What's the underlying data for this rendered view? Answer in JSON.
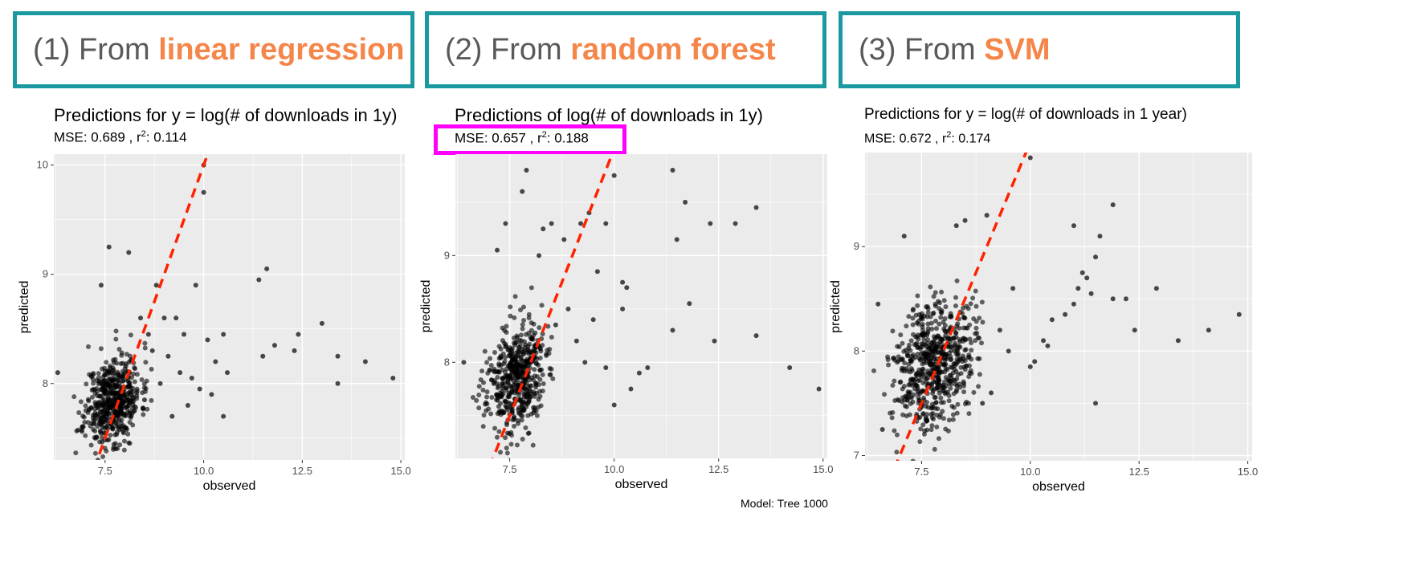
{
  "headers": [
    {
      "prefix": "(1) From ",
      "method": "linear regression"
    },
    {
      "prefix": "(2) From ",
      "method": "random forest"
    },
    {
      "prefix": "(3) From ",
      "method": "SVM"
    }
  ],
  "panels": [
    {
      "title": "Predictions for y = log(# of downloads in 1y)",
      "mse_label": "MSE:  0.689 , r",
      "r2_label": ":  0.114"
    },
    {
      "title": "Predictions of log(# of downloads in 1y)",
      "mse_label": "MSE:  0.657 , r",
      "r2_label": ":  0.188"
    },
    {
      "title": "Predictions for y = log(# of downloads in 1 year)",
      "mse_label": "MSE:  0.672 , r",
      "r2_label": ":  0.174"
    }
  ],
  "footer_caption": "Model: Tree 1000",
  "colors": {
    "header_border": "#1a9aa0",
    "method_text": "#f4864a",
    "highlight_box": "#ff00ff",
    "ref_line": "#ff2200",
    "panel_bg": "#ebebeb",
    "points": "#000000"
  },
  "chart_data": [
    {
      "type": "scatter",
      "title": "Predictions for y = log(# of downloads in 1y)",
      "subtitle": "MSE:  0.689 , r²:  0.114",
      "xlabel": "observed",
      "ylabel": "predicted",
      "xlim": [
        6.2,
        15.1
      ],
      "ylim": [
        7.3,
        10.1
      ],
      "xticks": [
        "7.5",
        "10.0",
        "12.5",
        "15.0"
      ],
      "yticks": [
        "8",
        "9",
        "10"
      ],
      "reference_line": {
        "slope": 1,
        "intercept": 0,
        "style": "dashed red"
      },
      "cluster": {
        "x_center": 7.7,
        "y_center": 7.85,
        "n": 520,
        "x_sd": 0.35,
        "y_sd": 0.2
      },
      "points": [
        [
          6.3,
          8.1
        ],
        [
          7.4,
          8.9
        ],
        [
          7.6,
          9.25
        ],
        [
          8.1,
          9.2
        ],
        [
          8.8,
          8.9
        ],
        [
          9.0,
          8.6
        ],
        [
          9.3,
          8.6
        ],
        [
          9.8,
          8.9
        ],
        [
          10.0,
          10.0
        ],
        [
          10.0,
          9.75
        ],
        [
          10.1,
          8.4
        ],
        [
          10.3,
          8.2
        ],
        [
          10.5,
          8.45
        ],
        [
          10.6,
          8.1
        ],
        [
          9.9,
          7.95
        ],
        [
          10.2,
          7.9
        ],
        [
          10.5,
          7.7
        ],
        [
          11.4,
          8.95
        ],
        [
          11.6,
          9.05
        ],
        [
          11.5,
          8.25
        ],
        [
          11.8,
          8.35
        ],
        [
          12.3,
          8.3
        ],
        [
          12.4,
          8.45
        ],
        [
          13.0,
          8.55
        ],
        [
          13.4,
          8.25
        ],
        [
          13.4,
          8.0
        ],
        [
          14.1,
          8.2
        ],
        [
          14.8,
          8.05
        ],
        [
          8.5,
          7.85
        ],
        [
          8.7,
          8.3
        ],
        [
          8.9,
          8.0
        ],
        [
          9.1,
          8.25
        ],
        [
          9.4,
          8.1
        ],
        [
          9.6,
          7.8
        ],
        [
          9.2,
          7.7
        ],
        [
          8.4,
          8.6
        ],
        [
          8.6,
          8.45
        ],
        [
          9.5,
          8.45
        ],
        [
          9.7,
          8.05
        ]
      ]
    },
    {
      "type": "scatter",
      "title": "Predictions of log(# of downloads in 1y)",
      "subtitle": "MSE:  0.657 , r²:  0.188",
      "xlabel": "observed",
      "ylabel": "predicted",
      "xlim": [
        6.2,
        15.1
      ],
      "ylim": [
        7.1,
        9.95
      ],
      "xticks": [
        "7.5",
        "10.0",
        "12.5",
        "15.0"
      ],
      "yticks": [
        "8",
        "9"
      ],
      "reference_line": {
        "slope": 1,
        "intercept": 0,
        "style": "dashed red"
      },
      "cluster": {
        "x_center": 7.65,
        "y_center": 7.85,
        "n": 520,
        "x_sd": 0.35,
        "y_sd": 0.25
      },
      "points": [
        [
          6.4,
          8.0
        ],
        [
          7.2,
          9.05
        ],
        [
          7.4,
          9.3
        ],
        [
          7.9,
          9.8
        ],
        [
          7.8,
          9.6
        ],
        [
          8.3,
          9.25
        ],
        [
          8.5,
          9.3
        ],
        [
          8.2,
          9.0
        ],
        [
          8.8,
          9.15
        ],
        [
          9.2,
          9.3
        ],
        [
          9.4,
          9.4
        ],
        [
          9.8,
          9.3
        ],
        [
          10.0,
          9.75
        ],
        [
          11.4,
          9.8
        ],
        [
          11.7,
          9.5
        ],
        [
          11.5,
          9.15
        ],
        [
          12.3,
          9.3
        ],
        [
          12.9,
          9.3
        ],
        [
          13.4,
          9.45
        ],
        [
          10.2,
          8.75
        ],
        [
          10.3,
          8.7
        ],
        [
          9.6,
          8.85
        ],
        [
          10.2,
          8.5
        ],
        [
          11.8,
          8.55
        ],
        [
          11.4,
          8.3
        ],
        [
          12.4,
          8.2
        ],
        [
          13.4,
          8.25
        ],
        [
          10.8,
          7.95
        ],
        [
          10.6,
          7.9
        ],
        [
          10.4,
          7.75
        ],
        [
          10.0,
          7.6
        ],
        [
          9.1,
          8.2
        ],
        [
          9.3,
          8.0
        ],
        [
          9.8,
          7.95
        ],
        [
          14.2,
          7.95
        ],
        [
          14.9,
          7.75
        ],
        [
          8.6,
          8.35
        ],
        [
          8.9,
          8.5
        ],
        [
          9.5,
          8.4
        ]
      ]
    },
    {
      "type": "scatter",
      "title": "Predictions for y = log(# of downloads in 1 year)",
      "subtitle": "MSE:  0.672 , r²:  0.174",
      "xlabel": "observed",
      "ylabel": "predicted",
      "xlim": [
        6.2,
        15.1
      ],
      "ylim": [
        6.95,
        9.9
      ],
      "xticks": [
        "7.5",
        "10.0",
        "12.5",
        "15.0"
      ],
      "yticks": [
        "7",
        "8",
        "9"
      ],
      "reference_line": {
        "slope": 1,
        "intercept": 0,
        "style": "dashed red"
      },
      "cluster": {
        "x_center": 7.8,
        "y_center": 7.9,
        "n": 620,
        "x_sd": 0.45,
        "y_sd": 0.3
      },
      "points": [
        [
          6.5,
          8.45
        ],
        [
          6.6,
          7.25
        ],
        [
          7.1,
          9.1
        ],
        [
          8.3,
          9.2
        ],
        [
          8.5,
          9.25
        ],
        [
          9.0,
          9.3
        ],
        [
          10.0,
          9.85
        ],
        [
          11.0,
          9.2
        ],
        [
          11.5,
          8.9
        ],
        [
          11.6,
          9.1
        ],
        [
          11.9,
          9.4
        ],
        [
          11.3,
          8.7
        ],
        [
          11.1,
          8.6
        ],
        [
          11.0,
          8.45
        ],
        [
          10.8,
          8.35
        ],
        [
          11.4,
          8.55
        ],
        [
          11.9,
          8.5
        ],
        [
          12.2,
          8.5
        ],
        [
          12.4,
          8.2
        ],
        [
          12.9,
          8.6
        ],
        [
          13.4,
          8.1
        ],
        [
          14.1,
          8.2
        ],
        [
          14.8,
          8.35
        ],
        [
          11.5,
          7.5
        ],
        [
          10.3,
          8.1
        ],
        [
          10.4,
          8.05
        ],
        [
          10.1,
          7.9
        ],
        [
          10.0,
          7.85
        ],
        [
          9.6,
          8.6
        ],
        [
          9.5,
          8.0
        ],
        [
          9.3,
          8.2
        ],
        [
          9.1,
          7.6
        ],
        [
          8.9,
          7.5
        ],
        [
          10.5,
          8.3
        ],
        [
          11.2,
          8.75
        ]
      ]
    }
  ]
}
